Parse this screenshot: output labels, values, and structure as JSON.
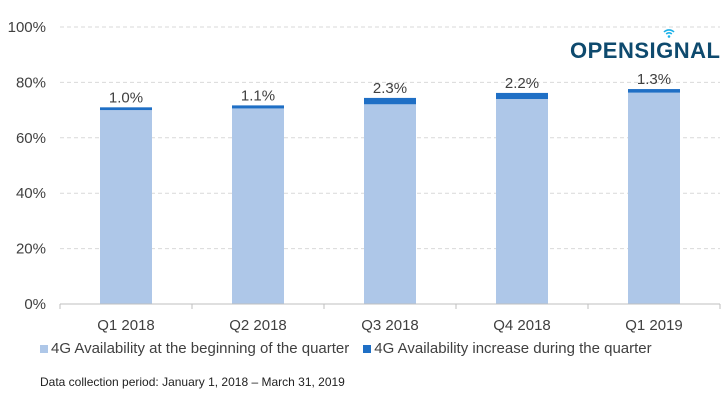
{
  "chart_data": {
    "type": "bar",
    "stacked": true,
    "title": "",
    "xlabel": "",
    "ylabel": "",
    "ylim": [
      0,
      100
    ],
    "yticks": [
      "0%",
      "20%",
      "40%",
      "60%",
      "80%",
      "100%"
    ],
    "ytick_values": [
      0,
      20,
      40,
      60,
      80,
      100
    ],
    "grid": true,
    "categories": [
      "Q1 2018",
      "Q2 2018",
      "Q3 2018",
      "Q4 2018",
      "Q1 2019"
    ],
    "series": [
      {
        "name": "4G Availability at the beginning of the quarter",
        "color": "#aec7e8",
        "values": [
          70.0,
          70.6,
          72.1,
          74.0,
          76.3
        ]
      },
      {
        "name": "4G Availability increase during the quarter",
        "color": "#1f6fc5",
        "values": [
          1.0,
          1.1,
          2.3,
          2.2,
          1.3
        ]
      }
    ],
    "data_labels": [
      "1.0%",
      "1.1%",
      "2.3%",
      "2.2%",
      "1.3%"
    ],
    "legend_position": "bottom"
  },
  "logo": {
    "text_before": "OPENS",
    "text_i": "I",
    "text_after": "GNAL"
  },
  "footnote": "Data collection period: January 1, 2018 – March 31, 2019",
  "colors": {
    "base": "#aec7e8",
    "increase": "#1f6fc5",
    "logo": "#0e4a6e",
    "logo_accent": "#1ab0e8"
  }
}
